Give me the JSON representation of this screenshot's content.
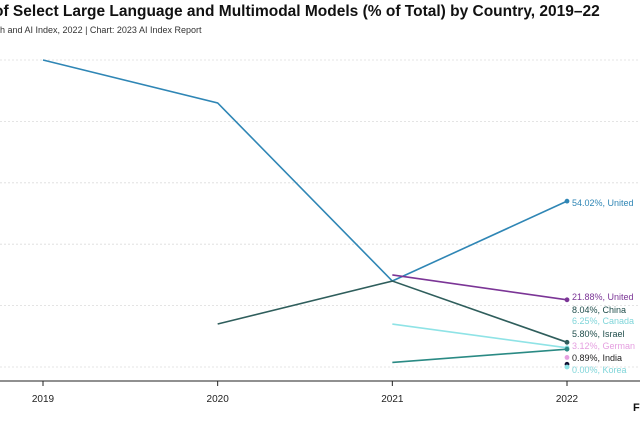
{
  "header": {
    "title": "of Select Large Language and Multimodal Models (% of Total) by Country, 2019–22",
    "subtitle": "h and AI Index, 2022 | Chart: 2023 AI Index Report",
    "corner_mark": "F"
  },
  "chart_data": {
    "type": "line",
    "title": "of Select Large Language and Multimodal Models (% of Total) by Country, 2019–22",
    "x": [
      "2019",
      "2020",
      "2021",
      "2022"
    ],
    "ylim": [
      0,
      100
    ],
    "grid": true,
    "series": [
      {
        "name": "United",
        "label": "54.02%, United",
        "color": "#2f86b5",
        "values": [
          100,
          86,
          28,
          54.02
        ]
      },
      {
        "name": "United",
        "label": "21.88%, United",
        "color": "#7b3596",
        "values": [
          null,
          null,
          30,
          21.88
        ]
      },
      {
        "name": "China",
        "label": "8.04%, China",
        "color": "#2f5e5c",
        "values": [
          null,
          14,
          28,
          8.04
        ]
      },
      {
        "name": "Canada",
        "label": "6.25%, Canada",
        "color": "#8fe3e6",
        "values": [
          null,
          null,
          14,
          6.25
        ]
      },
      {
        "name": "Israel",
        "label": "5.80%, Israel",
        "color": "#2a8a84",
        "values": [
          null,
          null,
          1.5,
          5.8
        ]
      },
      {
        "name": "German",
        "label": "3.12%, German",
        "color": "#e59fe0",
        "values": [
          null,
          null,
          null,
          3.12
        ]
      },
      {
        "name": "India",
        "label": "0.89%, India",
        "color": "#111133",
        "values": [
          null,
          null,
          null,
          0.89
        ]
      },
      {
        "name": "Korea",
        "label": "0.00%, Korea",
        "color": "#8fe3e6",
        "values": [
          null,
          null,
          null,
          0
        ]
      }
    ]
  }
}
